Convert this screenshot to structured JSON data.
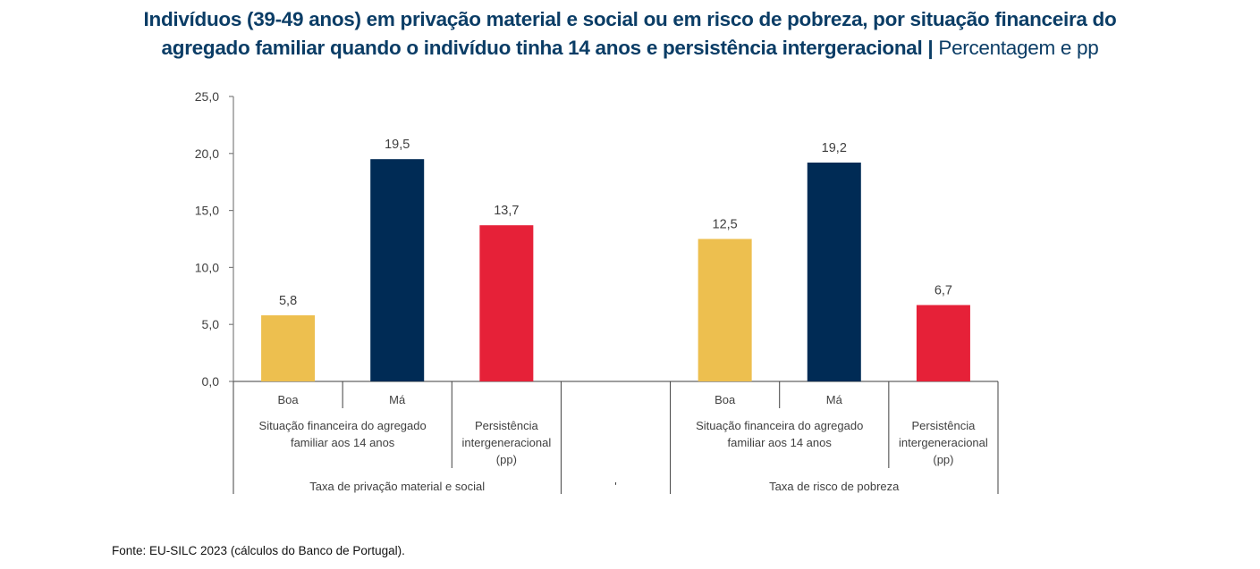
{
  "title": {
    "line1": "Indivíduos (39-49 anos) em privação material e social ou em risco de pobreza, por situação financeira do",
    "line2_main": "agregado familiar quando o indivíduo tinha 14 anos e persistência intergeracional",
    "separator": " | ",
    "unit": "Percentagem e pp"
  },
  "source": "Fonte: EU-SILC 2023 (cálculos do Banco de Portugal).",
  "chart_data": {
    "type": "bar",
    "title": "Indivíduos (39-49 anos) em privação material e social ou em risco de pobreza, por situação financeira do agregado familiar quando o indivíduo tinha 14 anos e persistência intergeracional",
    "unit": "Percentagem e pp",
    "ylim": [
      0,
      25
    ],
    "yticks": [
      0,
      5,
      10,
      15,
      20,
      25
    ],
    "ytick_labels": [
      "0,0",
      "5,0",
      "10,0",
      "15,0",
      "20,0",
      "25,0"
    ],
    "grid": false,
    "legend": "none",
    "groups": [
      {
        "label": "Taxa de privação material e social",
        "subgroups": [
          {
            "label": "Situação financeira do agregado familiar aos 14 anos",
            "label_lines": [
              "Situação financeira do agregado",
              "familiar aos 14 anos"
            ]
          },
          {
            "label": "Persistência intergeneracional (pp)",
            "label_lines": [
              "Persistência",
              "intergeneracional",
              "(pp)"
            ]
          }
        ],
        "bars": [
          {
            "category": "Boa",
            "value": 5.8,
            "label": "5,8",
            "color": "#EDBF4F"
          },
          {
            "category": "Má",
            "value": 19.5,
            "label": "19,5",
            "color": "#002B55"
          },
          {
            "category": "",
            "value": 13.7,
            "label": "13,7",
            "color": "#E62138"
          }
        ]
      },
      {
        "label": "'",
        "subgroups": [],
        "bars": []
      },
      {
        "label": "Taxa de risco de pobreza",
        "subgroups": [
          {
            "label": "Situação financeira do agregado familiar aos 14 anos",
            "label_lines": [
              "Situação financeira do agregado",
              "familiar aos 14 anos"
            ]
          },
          {
            "label": "Persistência intergeneracional (pp)",
            "label_lines": [
              "Persistência",
              "intergeneracional",
              "(pp)"
            ]
          }
        ],
        "bars": [
          {
            "category": "Boa",
            "value": 12.5,
            "label": "12,5",
            "color": "#EDBF4F"
          },
          {
            "category": "Má",
            "value": 19.2,
            "label": "19,2",
            "color": "#002B55"
          },
          {
            "category": "",
            "value": 6.7,
            "label": "6,7",
            "color": "#E62138"
          }
        ]
      }
    ]
  }
}
